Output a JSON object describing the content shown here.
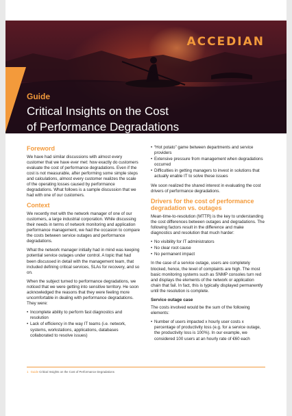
{
  "header": {
    "logo": "ACCEDIAN",
    "label": "Guide",
    "title_line1": "Critical Insights on the Cost",
    "title_line2": "of Performance Degradations"
  },
  "foreword": {
    "heading": "Foreword",
    "text": "We have had similar discussions with almost every customer that we have ever met: how exactly do customers evaluate the cost of performance degradations. Even if the cost is not measurable, after performing some simple steps and calculations, almost every customer realizes the scale of the operating losses caused by performance degradations. What follows is a sample discussion that we had with one of our customers."
  },
  "context": {
    "heading": "Context",
    "p1": "We recently met with the network manager of one of our customers, a large industrial corporation. While discussing their needs in terms of network monitoring and application performance management, we had the occasion to compare the costs between service outages and performance degradations.",
    "p2": "What the network manager initially had in mind was keeping potential service outages under control. A topic that had been discussed in detail with the management team, that included defining critical services, SLAs for recovery, and so on.",
    "p3": "When the subject turned to performance degradations, we noticed that we were getting into sensitive territory. He soon acknowledged the reasons that they were feeling more uncomfortable in dealing with performance degradations. They were:",
    "bullets": [
      "Incomplete ability to perform fast diagnostics and resolution",
      "Lack of efficiency in the way IT teams (i.e. network, systems, workstations, applications, databases collaborated to resolve issues)"
    ]
  },
  "right": {
    "bullets_top": [
      "“Hot potato” game between departments and service providers",
      "Extensive pressure from management when degradations occurred",
      "Difficulties in getting managers to invest in solutions that actually enable IT to solve these issues"
    ],
    "p_after": "We soon realized the shared interest in evaluating the cost drivers of performance degradations.",
    "heading2": "Drivers for the cost of performance degradation vs. outages",
    "p_mttr": "Mean-time-to-resolution (MTTR) is the key to understanding the cost differences between outages and degradations. The following factors result in the difference and make diagnostics and resolution that much harder:",
    "factors": [
      "No visibility for IT administrators",
      "No clear root cause",
      "No permanent impact"
    ],
    "p_outage": "In the case of a service outage, users are completely blocked, hence, the level of complaints are high. The most basic monitoring systems such as SNMP consoles turn red and displays the elements of the network or application chain that fail. In fact, this is typically displayed permanently until the resolution is complete.",
    "case_heading": "Service outage case",
    "p_costs": "The costs involved would be the sum of the following elements:",
    "cost_bullets": [
      "Number of users impacted x hourly user costs x percentage of productivity loss (e.g. for a service outage, the productivity loss is 100%). In our example, we considered 100 users at an hourly rate of €60 each"
    ]
  },
  "footer": {
    "page_number": "1",
    "label": "Guide",
    "title": "Critical Insights on the Cost of Performance Degradations"
  }
}
